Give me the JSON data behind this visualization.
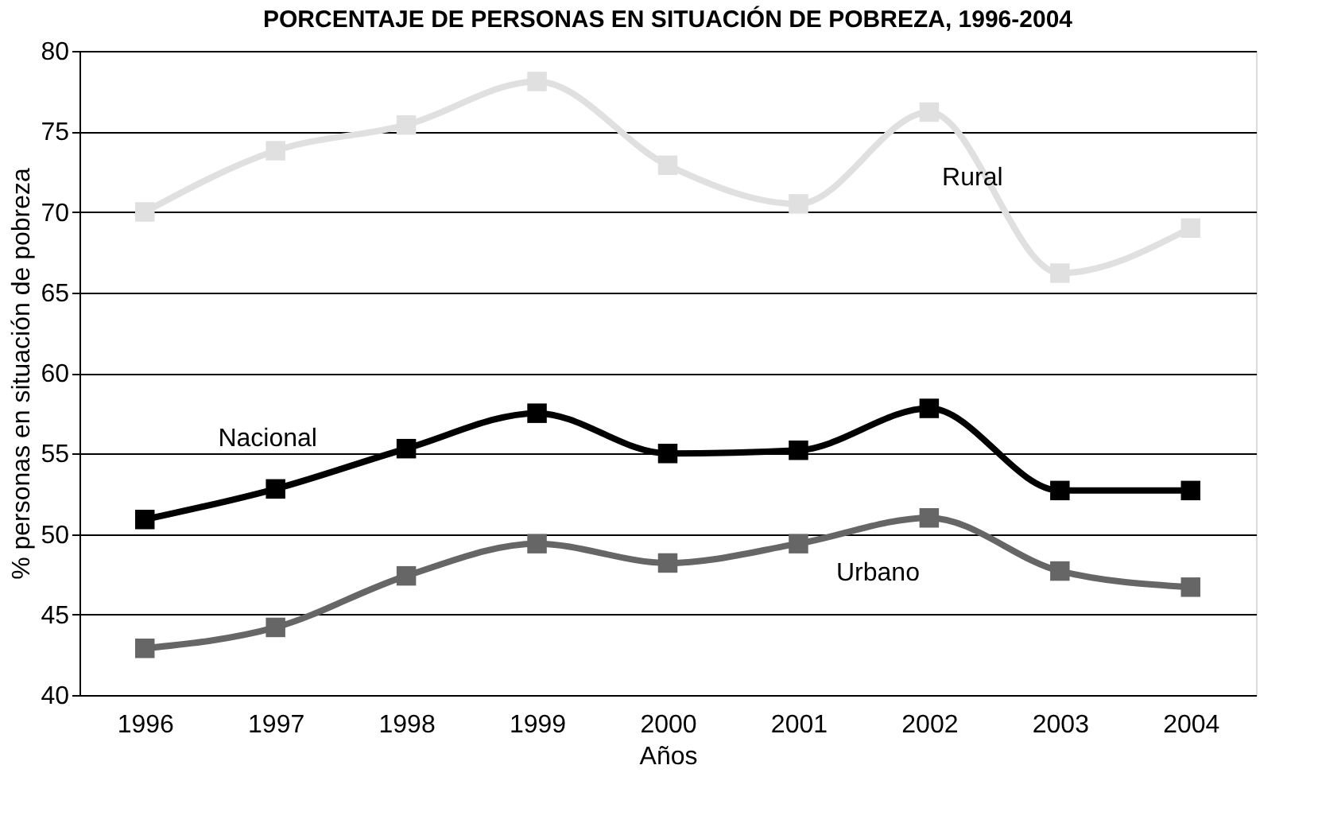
{
  "chart_data": {
    "type": "line",
    "title": "PORCENTAJE DE PERSONAS EN SITUACIÓN DE POBREZA, 1996-2004",
    "xlabel": "Años",
    "ylabel": "% personas en situación de pobreza",
    "categories": [
      "1996",
      "1997",
      "1998",
      "1999",
      "2000",
      "2001",
      "2002",
      "2003",
      "2004"
    ],
    "series": [
      {
        "name": "Rural",
        "color": "#e0e0e0",
        "values": [
          70.0,
          73.8,
          75.4,
          78.1,
          72.9,
          70.5,
          76.2,
          66.2,
          69.0
        ]
      },
      {
        "name": "Nacional",
        "color": "#000000",
        "values": [
          50.9,
          52.8,
          55.3,
          57.5,
          55.0,
          55.2,
          57.8,
          52.7,
          52.7
        ]
      },
      {
        "name": "Urbano",
        "color": "#666666",
        "values": [
          42.9,
          44.2,
          47.4,
          49.4,
          48.2,
          49.4,
          51.0,
          47.7,
          46.7
        ]
      }
    ],
    "ylim": [
      40,
      80
    ],
    "yticks": [
      40,
      45,
      50,
      55,
      60,
      65,
      70,
      75,
      80
    ],
    "grid": "y",
    "marker": "square",
    "line_style": "solid",
    "legend": false
  }
}
